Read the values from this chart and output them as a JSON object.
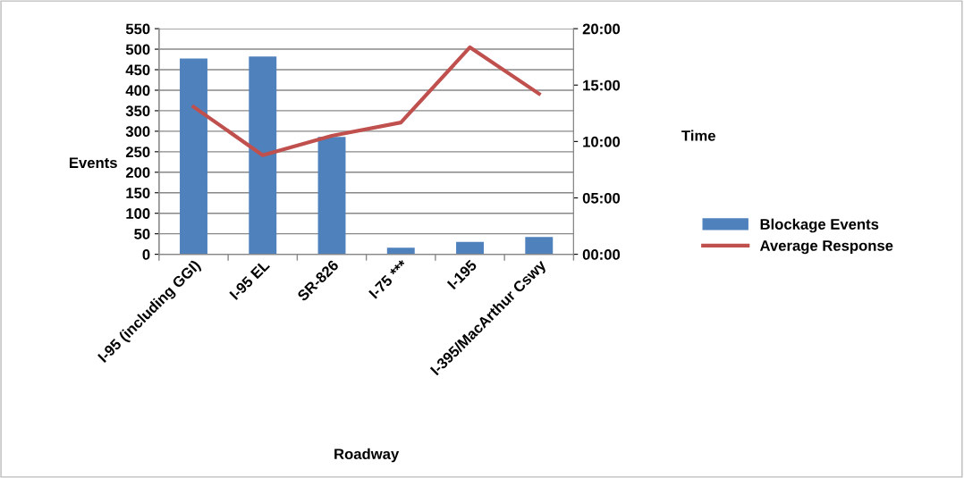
{
  "chart_data": {
    "type": "bar",
    "xlabel": "Roadway",
    "ylabel": "Events",
    "y2label": "Time",
    "categories": [
      "I-95 (including GGI)",
      "I-95 EL",
      "SR-826",
      "I-75 ***",
      "I-195",
      "I-395/MacArthur Cswy"
    ],
    "series": [
      {
        "name": "Blockage Events",
        "color": "#4f81bd",
        "values": [
          477,
          482,
          286,
          16,
          30,
          42
        ]
      },
      {
        "name": "Average Response",
        "type": "line",
        "axis": "y2",
        "color": "#c0504d",
        "values": [
          13.07,
          8.78,
          10.5,
          11.68,
          18.35,
          14.23
        ]
      }
    ],
    "ylim": [
      0,
      550
    ],
    "yticks": [
      0,
      50,
      100,
      150,
      200,
      250,
      300,
      350,
      400,
      450,
      500,
      550
    ],
    "y2lim": [
      0,
      20
    ],
    "y2ticks": [
      {
        "value": 0,
        "label": "00:00"
      },
      {
        "value": 5,
        "label": "05:00"
      },
      {
        "value": 10,
        "label": "10:00"
      },
      {
        "value": 15,
        "label": "15:00"
      },
      {
        "value": 20,
        "label": "20:00"
      }
    ],
    "grid": "y",
    "legend": "right",
    "marker": "none"
  }
}
